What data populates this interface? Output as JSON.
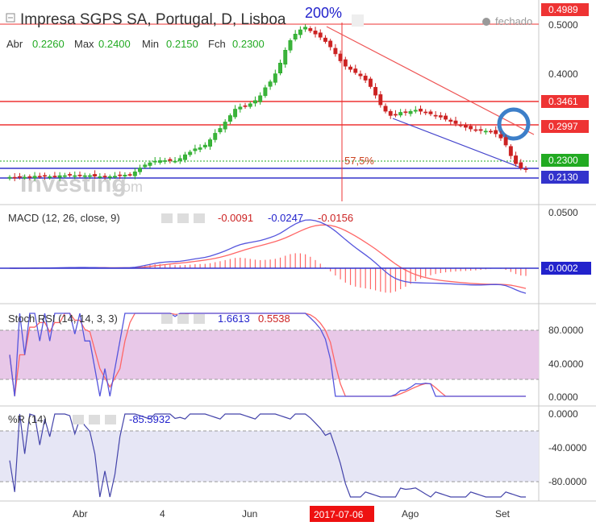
{
  "header": {
    "title": "Impresa SGPS SA, Portugal, D, Lisboa",
    "status": "fechado",
    "ohlc": [
      {
        "label": "Abr",
        "value": "0.2260"
      },
      {
        "label": "Max",
        "value": "0.2400"
      },
      {
        "label": "Min",
        "value": "0.2150"
      },
      {
        "label": "Fch",
        "value": "0.2300"
      }
    ]
  },
  "annotations": {
    "gain_label": "200%",
    "drop_label": "57,5%",
    "watermark": "Investing",
    "watermark_suffix": ".com"
  },
  "colors": {
    "up": "#22aa22",
    "down": "#cc2222",
    "macd": "#5555dd",
    "signal": "#ff6666",
    "hline_red": "#ee3333",
    "hline_blue": "#3333cc",
    "circle": "#3d7fc9",
    "band_rsi": "#e8c8e8",
    "band_wr": "#e6e6f5"
  },
  "chart_data": [
    {
      "type": "candlestick",
      "title": "Impresa SGPS SA, Portugal, D, Lisboa",
      "ylim": [
        0.2,
        0.5125
      ],
      "y_ticks": [
        "0.5000",
        "0.4000",
        "0.3000"
      ],
      "x_ticks": [
        "Abr",
        "4",
        "Jun",
        "2017-07-06",
        "Ago",
        "Set"
      ],
      "highlighted_date": "2017-07-06",
      "price_levels": [
        {
          "value": 0.4989,
          "label": "0.4989",
          "color": "#ee3333"
        },
        {
          "value": 0.3461,
          "label": "0.3461",
          "color": "#ee3333"
        },
        {
          "value": 0.2997,
          "label": "0.2997",
          "color": "#ee3333"
        },
        {
          "value": 0.23,
          "label": "0.2300",
          "color": "#22aa22"
        },
        {
          "value": 0.213,
          "label": "0.2130",
          "color": "#3333cc"
        }
      ],
      "closes": [
        0.215,
        0.214,
        0.216,
        0.215,
        0.216,
        0.217,
        0.216,
        0.217,
        0.216,
        0.217,
        0.218,
        0.218,
        0.219,
        0.218,
        0.219,
        0.218,
        0.218,
        0.217,
        0.216,
        0.217,
        0.216,
        0.217,
        0.218,
        0.219,
        0.22,
        0.225,
        0.232,
        0.238,
        0.242,
        0.245,
        0.246,
        0.246,
        0.246,
        0.245,
        0.25,
        0.257,
        0.262,
        0.268,
        0.27,
        0.275,
        0.285,
        0.297,
        0.306,
        0.318,
        0.33,
        0.342,
        0.346,
        0.348,
        0.352,
        0.358,
        0.367,
        0.382,
        0.393,
        0.408,
        0.428,
        0.452,
        0.47,
        0.482,
        0.49,
        0.495,
        0.488,
        0.482,
        0.476,
        0.468,
        0.458,
        0.445,
        0.432,
        0.422,
        0.416,
        0.41,
        0.404,
        0.396,
        0.384,
        0.368,
        0.35,
        0.338,
        0.33,
        0.332,
        0.336,
        0.336,
        0.338,
        0.34,
        0.338,
        0.336,
        0.333,
        0.33,
        0.327,
        0.323,
        0.319,
        0.315,
        0.312,
        0.308,
        0.305,
        0.303,
        0.302,
        0.301,
        0.3,
        0.296,
        0.288,
        0.275,
        0.255,
        0.24,
        0.232,
        0.23
      ],
      "macd": {
        "name": "MACD (12, 26, close, 9)",
        "values": [
          "-0.0091",
          "-0.0247",
          "-0.0156"
        ],
        "y_ticks": [
          "0.0500"
        ],
        "last": "-0.0002"
      },
      "stoch_rsi": {
        "name": "Stoch RSI (14, 14, 3, 3)",
        "values": [
          "1.6613",
          "0.5538"
        ],
        "y_ticks": [
          "80.0000",
          "40.0000",
          "0.0000"
        ]
      },
      "williams_r": {
        "name": "%R (14)",
        "values": [
          "-85.5932"
        ],
        "y_ticks": [
          "0.0000",
          "-40.0000",
          "-80.0000"
        ]
      }
    }
  ]
}
